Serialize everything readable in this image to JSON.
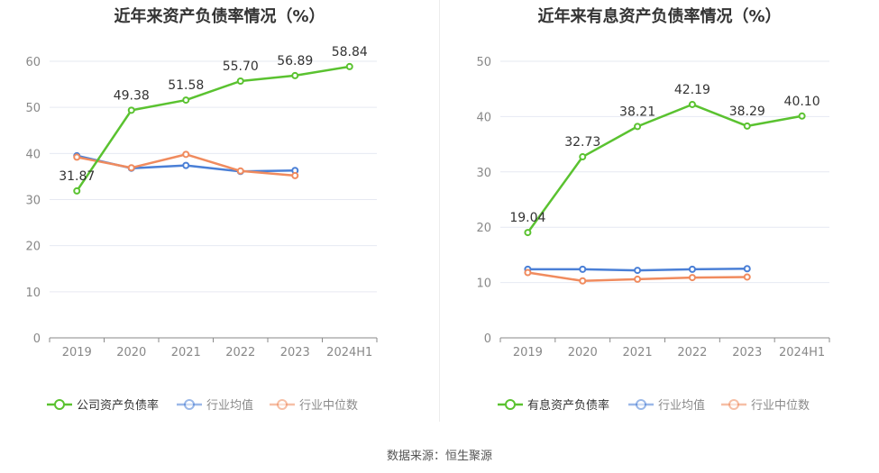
{
  "source": "数据来源：恒生聚源",
  "chart_data": [
    {
      "type": "line",
      "title": "近年来资产负债率情况（%）",
      "categories": [
        "2019",
        "2020",
        "2021",
        "2022",
        "2023",
        "2024H1"
      ],
      "ylim": [
        0,
        60
      ],
      "yticks": [
        0,
        10,
        20,
        30,
        40,
        50,
        60
      ],
      "grid": true,
      "legend_position": "bottom",
      "series": [
        {
          "name": "公司资产负债率",
          "color": "#5ac230",
          "values": [
            31.87,
            49.38,
            51.58,
            55.7,
            56.89,
            58.84
          ],
          "labels": [
            "31.87",
            "49.38",
            "51.58",
            "55.70",
            "56.89",
            "58.84"
          ]
        },
        {
          "name": "行业均值",
          "color": "#4a7fd6",
          "values": [
            39.5,
            36.8,
            37.4,
            36.1,
            36.3,
            null
          ]
        },
        {
          "name": "行业中位数",
          "color": "#f08b5e",
          "values": [
            39.2,
            36.9,
            39.8,
            36.2,
            35.2,
            null
          ]
        }
      ]
    },
    {
      "type": "line",
      "title": "近年来有息资产负债率情况（%）",
      "categories": [
        "2019",
        "2020",
        "2021",
        "2022",
        "2023",
        "2024H1"
      ],
      "ylim": [
        0,
        50
      ],
      "yticks": [
        0,
        10,
        20,
        30,
        40,
        50
      ],
      "grid": true,
      "legend_position": "bottom",
      "series": [
        {
          "name": "有息资产负债率",
          "color": "#5ac230",
          "values": [
            19.04,
            32.73,
            38.21,
            42.19,
            38.29,
            40.1
          ],
          "labels": [
            "19.04",
            "32.73",
            "38.21",
            "42.19",
            "38.29",
            "40.10"
          ]
        },
        {
          "name": "行业均值",
          "color": "#4a7fd6",
          "values": [
            12.4,
            12.4,
            12.2,
            12.4,
            12.5,
            null
          ]
        },
        {
          "name": "行业中位数",
          "color": "#f08b5e",
          "values": [
            11.8,
            10.3,
            10.6,
            10.9,
            11.0,
            null
          ]
        }
      ]
    }
  ]
}
